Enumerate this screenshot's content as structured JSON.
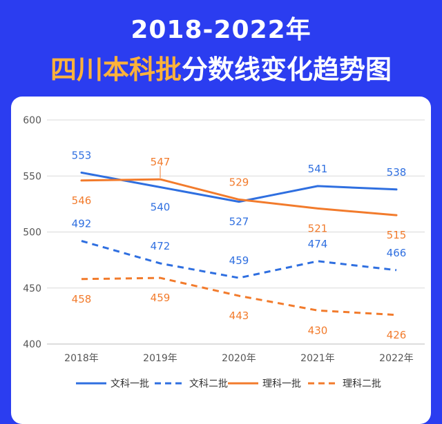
{
  "title": {
    "line1": "2018-2022年",
    "line2_highlight": "四川本科批",
    "line2_rest": "分数线变化趋势图"
  },
  "colors": {
    "background": "#2b3df0",
    "blue": "#2f6fe0",
    "orange": "#f27b2c",
    "grid": "#d9d9d9"
  },
  "chart_data": {
    "type": "line",
    "title": "2018-2022年 四川本科批分数线变化趋势图",
    "categories": [
      "2018年",
      "2019年",
      "2020年",
      "2021年",
      "2022年"
    ],
    "ylim": [
      400,
      600
    ],
    "yticks": [
      400,
      450,
      500,
      550,
      600
    ],
    "grid": true,
    "legend": "bottom",
    "series": [
      {
        "name": "文科一批",
        "values": [
          553,
          540,
          527,
          541,
          538
        ],
        "color": "#2f6fe0",
        "dash": false,
        "label_pos": [
          "above",
          "below",
          "below",
          "above",
          "above"
        ]
      },
      {
        "name": "文科二批",
        "values": [
          492,
          472,
          459,
          474,
          466
        ],
        "color": "#2f6fe0",
        "dash": true,
        "label_pos": [
          "above",
          "above",
          "above",
          "above",
          "above"
        ]
      },
      {
        "name": "理科一批",
        "values": [
          546,
          547,
          529,
          521,
          515
        ],
        "color": "#f27b2c",
        "dash": false,
        "label_pos": [
          "below",
          "above",
          "above",
          "below",
          "below"
        ]
      },
      {
        "name": "理科二批",
        "values": [
          458,
          459,
          443,
          430,
          426
        ],
        "color": "#f27b2c",
        "dash": true,
        "label_pos": [
          "below",
          "below",
          "below",
          "below",
          "below"
        ]
      }
    ]
  }
}
